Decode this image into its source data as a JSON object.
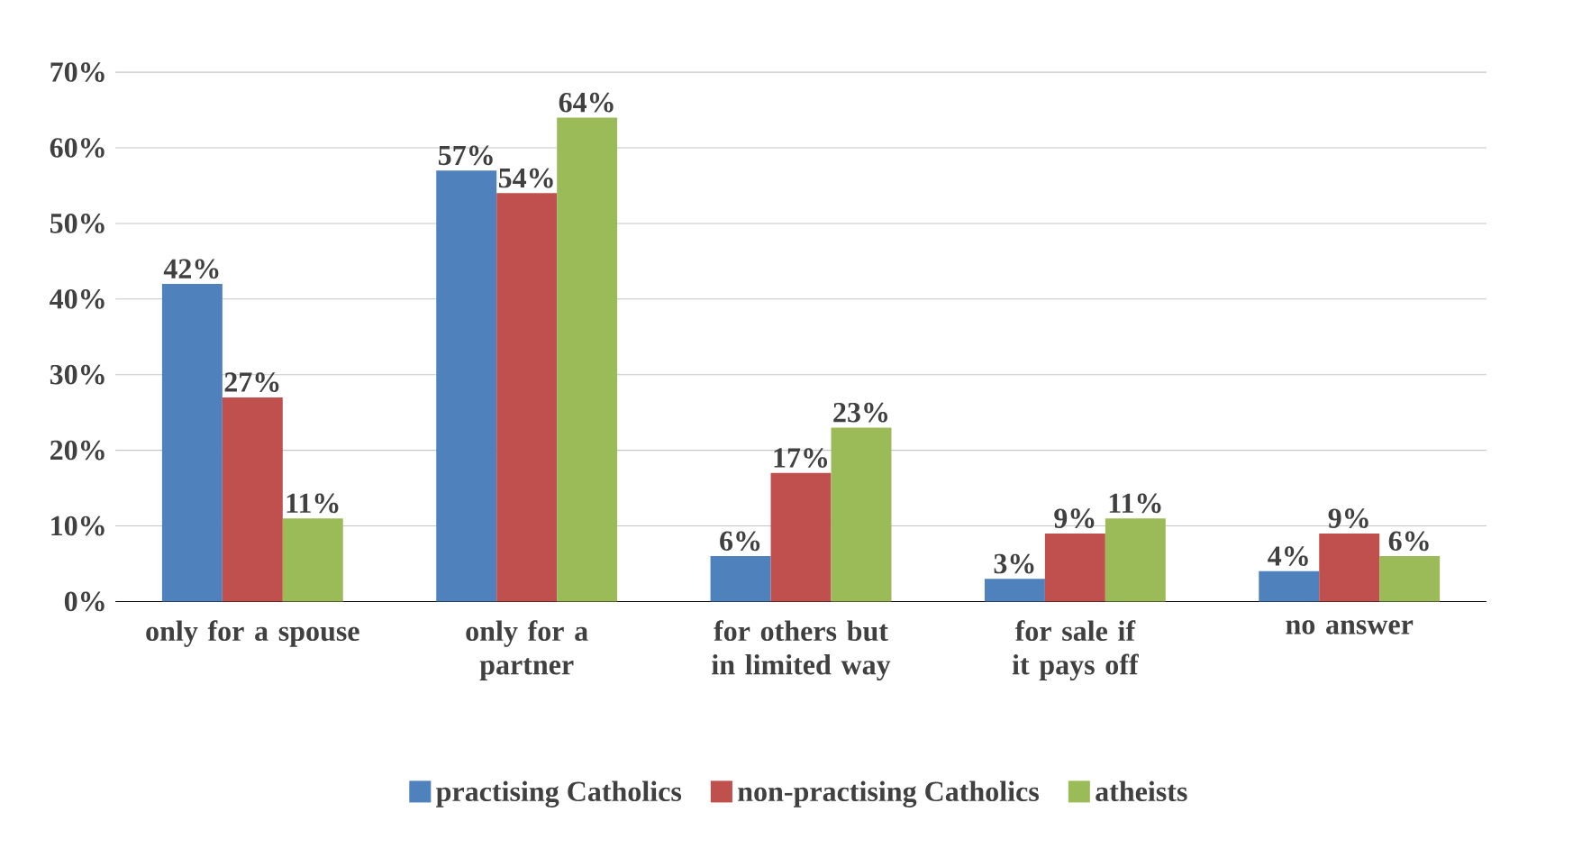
{
  "chart_data": {
    "type": "bar",
    "categories": [
      "only for a spouse",
      "only for a partner",
      "for others but in limited way",
      "for sale if it pays off",
      "no answer"
    ],
    "series": [
      {
        "name": "practising Catholics",
        "color": "#4f81bd",
        "values": [
          42,
          57,
          6,
          3,
          4
        ],
        "value_labels": [
          "42%",
          "57%",
          "6%",
          "3%",
          "4%"
        ]
      },
      {
        "name": "non-practising Catholics",
        "color": "#c0504d",
        "values": [
          27,
          54,
          17,
          9,
          9
        ],
        "value_labels": [
          "27%",
          "54%",
          "17%",
          "9%",
          "9%"
        ]
      },
      {
        "name": "atheists",
        "color": "#9bbb59",
        "values": [
          11,
          64,
          23,
          11,
          6
        ],
        "value_labels": [
          "11%",
          "64%",
          "23%",
          "11%",
          "6%"
        ]
      }
    ],
    "ylim": [
      0,
      70
    ],
    "yticks": [
      {
        "value": 0,
        "label": "0%"
      },
      {
        "value": 10,
        "label": "10%"
      },
      {
        "value": 20,
        "label": "20%"
      },
      {
        "value": 30,
        "label": "30%"
      },
      {
        "value": 40,
        "label": "40%"
      },
      {
        "value": 50,
        "label": "50%"
      },
      {
        "value": 60,
        "label": "60%"
      },
      {
        "value": 70,
        "label": "70%"
      }
    ],
    "grid": "y",
    "legend": "bottom"
  }
}
